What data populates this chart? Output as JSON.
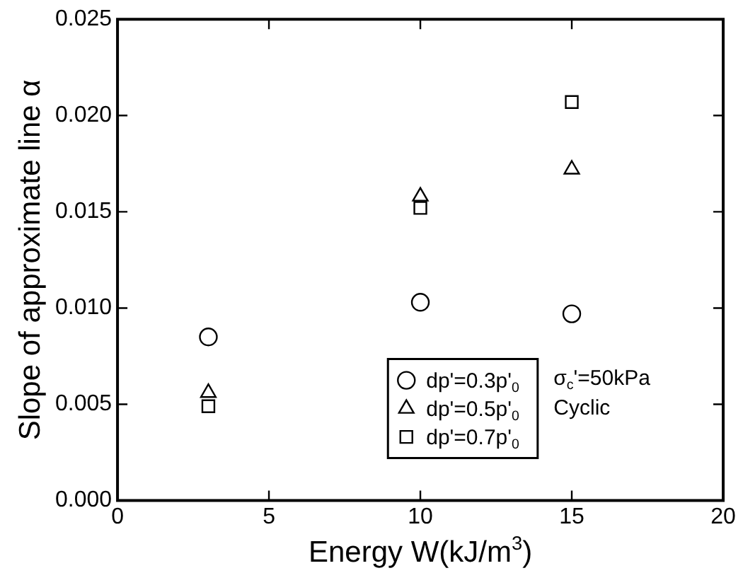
{
  "chart_data": {
    "type": "scatter",
    "xlabel": "Energy W(kJ/m$^{3}$)",
    "ylabel": "Slope of approximate line α",
    "xlim": [
      0,
      20
    ],
    "xticks": [
      0,
      5,
      10,
      15,
      20
    ],
    "ylim": [
      0,
      0.025
    ],
    "yticks": [
      {
        "value": 0,
        "label": "0.000"
      },
      {
        "value": 0.005,
        "label": "0.005"
      },
      {
        "value": 0.01,
        "label": "0.010"
      },
      {
        "value": 0.015,
        "label": "0.015"
      },
      {
        "value": 0.02,
        "label": "0.020"
      },
      {
        "value": 0.025,
        "label": "0.025"
      }
    ],
    "grid": false,
    "legend": "bottom",
    "annotations": [
      "σ$_{c}$'=50kPa",
      "Cyclic"
    ],
    "series": [
      {
        "name": "dp'=0.3p'$_{0}$",
        "color": "#000000",
        "marker": "circle",
        "x": [
          3,
          10,
          15
        ],
        "values": [
          0.0085,
          0.0103,
          0.0097
        ]
      },
      {
        "name": "dp'=0.5p'$_{0}$",
        "color": "#000000",
        "marker": "triangle",
        "x": [
          3,
          10,
          15
        ],
        "values": [
          0.0056,
          0.0158,
          0.0172
        ]
      },
      {
        "name": "dp'=0.7p'$_{0}$",
        "color": "#000000",
        "marker": "square",
        "x": [
          3,
          10,
          15
        ],
        "values": [
          0.0049,
          0.0152,
          0.0207
        ]
      }
    ]
  }
}
